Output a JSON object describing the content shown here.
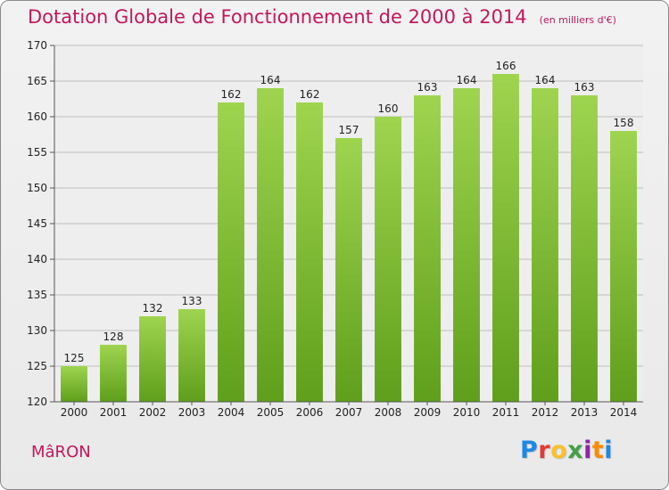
{
  "header": {
    "title": "Dotation Globale de Fonctionnement de 2000 à 2014",
    "subtitle": "(en milliers d'€)"
  },
  "footer": {
    "commune": "MâRON",
    "logo": "Proxiti",
    "logo_letters": [
      "P",
      "r",
      "o",
      "x",
      "i",
      "t",
      "i"
    ],
    "logo_colors": [
      "#1e88e5",
      "#e53935",
      "#fbc02d",
      "#43a047",
      "#8e24aa",
      "#fb8c00",
      "#1e88e5"
    ]
  },
  "colors": {
    "title": "#c2185b",
    "bar_top": "#9fd44f",
    "bar_bottom": "#5f9f1b",
    "grid": "#bdbdbd",
    "background": "#eeeeee"
  },
  "chart_data": {
    "type": "bar",
    "title": "Dotation Globale de Fonctionnement de 2000 à 2014",
    "subtitle": "(en milliers d'€)",
    "categories": [
      "2000",
      "2001",
      "2002",
      "2003",
      "2004",
      "2005",
      "2006",
      "2007",
      "2008",
      "2009",
      "2010",
      "2011",
      "2012",
      "2013",
      "2014"
    ],
    "values": [
      125,
      128,
      132,
      133,
      162,
      164,
      162,
      157,
      160,
      163,
      164,
      166,
      164,
      163,
      158
    ],
    "ylim": [
      120,
      170
    ],
    "yticks": [
      120,
      125,
      130,
      135,
      140,
      145,
      150,
      155,
      160,
      165,
      170
    ],
    "grid": true,
    "xlabel": "",
    "ylabel": ""
  }
}
